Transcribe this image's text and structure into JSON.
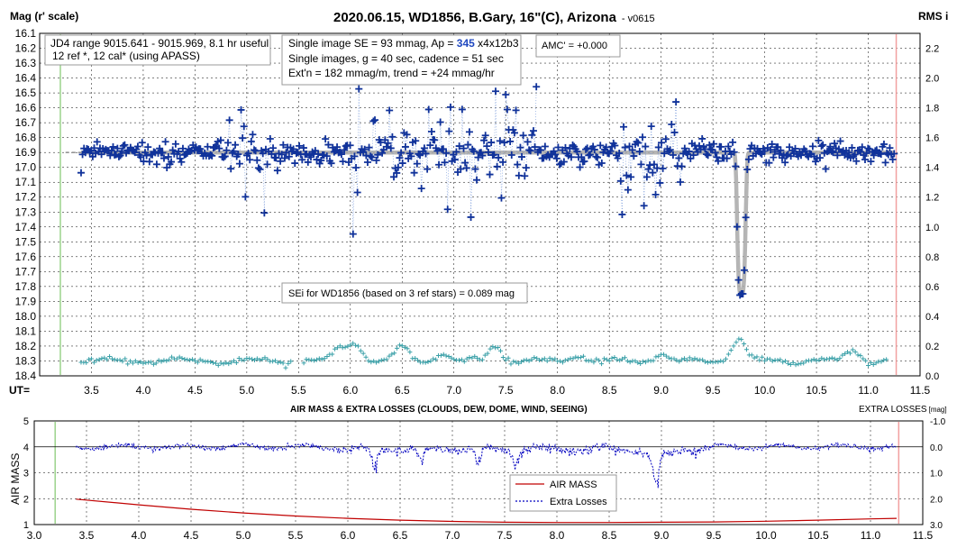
{
  "chart_data": [
    {
      "type": "scatter",
      "title": "2020.06.15, WD1856, B.Gary, 16\"(C), Arizona",
      "version": "- v0615",
      "ylabel_left": "Mag (r' scale)",
      "ylabel_right": "RMS i",
      "xlabel": "UT=",
      "xlim": [
        3.0,
        11.5
      ],
      "ylim_left": [
        16.1,
        18.4
      ],
      "ylim_right": [
        0.0,
        2.3
      ],
      "x_ticks": [
        "3.5",
        "4.0",
        "4.5",
        "5.0",
        "5.5",
        "6.0",
        "6.5",
        "7.0",
        "7.5",
        "8.0",
        "8.5",
        "9.0",
        "9.5",
        "10.0",
        "10.5",
        "11.0",
        "11.5"
      ],
      "y_ticks_left": [
        "16.1",
        "16.2",
        "16.3",
        "16.4",
        "16.5",
        "16.6",
        "16.7",
        "16.8",
        "16.9",
        "17.0",
        "17.1",
        "17.2",
        "17.3",
        "17.4",
        "17.5",
        "17.6",
        "17.7",
        "17.8",
        "17.9",
        "18.0",
        "18.1",
        "18.2",
        "18.3",
        "18.4"
      ],
      "y_ticks_right": [
        "2.2",
        "2.0",
        "1.8",
        "1.6",
        "1.4",
        "1.2",
        "1.0",
        "0.8",
        "0.6",
        "0.4",
        "0.2",
        "0.0"
      ],
      "grid": true,
      "vlines": [
        {
          "x": 3.2,
          "color": "#9bd38b"
        },
        {
          "x": 11.27,
          "color": "#f2a0a0"
        }
      ],
      "baseline_mag": 16.9,
      "transit": {
        "center": 9.775,
        "depth_mag": 17.85,
        "half_width": 0.045
      },
      "annotations": {
        "jd_line1": "JD4 range 9015.641 - 9015.969, 8.1 hr useful",
        "jd_line2": "12 ref *, 12 cal* (using APASS)",
        "se_pre": "Single image SE = 93 mmag, Ap = ",
        "se_ap": "345",
        "se_post": " x4x12b3",
        "single_images": "Single images, g = 40 sec, cadence = 51 sec",
        "extn": "Ext'n = 182 mmag/m, trend = +24 mmag/hr",
        "amc": "AMC' = +0.000",
        "sei": "SEi for WD1856 (based on 3 ref stars) = 0.089 mag"
      },
      "series": [
        {
          "name": "WD1856 r' mag",
          "color": "#10329a",
          "marker": "+",
          "n_points": 560,
          "x_range": [
            3.4,
            11.25
          ],
          "scatter_mag": 0.093
        },
        {
          "name": "RMS",
          "color": "#3aa0a8",
          "marker": "+",
          "baseline": 0.1
        }
      ]
    },
    {
      "type": "line",
      "title": "AIR MASS & EXTRA LOSSES (CLOUDS, DEW, DOME, WIND, SEEING)",
      "ylabel_left": "AIR MASS",
      "ylabel_right": "EXTRA LOSSES",
      "ylabel_right_unit": "[mag]",
      "xlim": [
        3.0,
        11.5
      ],
      "ylim_left": [
        1,
        5
      ],
      "ylim_right": [
        -1.0,
        3.0
      ],
      "x_ticks": [
        "3.0",
        "3.5",
        "4.0",
        "4.5",
        "5.0",
        "5.5",
        "6.0",
        "6.5",
        "7.0",
        "7.5",
        "8.0",
        "8.5",
        "9.0",
        "9.5",
        "10.0",
        "10.5",
        "11.0",
        "11.5"
      ],
      "y_ticks_left": [
        "5",
        "4",
        "3",
        "2",
        "1"
      ],
      "y_ticks_right": [
        "-1.0",
        "0.0",
        "1.0",
        "2.0",
        "3.0"
      ],
      "grid": true,
      "legend_position": "lower-center",
      "series": [
        {
          "name": "AIR MASS",
          "color": "#c00000",
          "x": [
            3.4,
            4.0,
            4.5,
            5.0,
            5.5,
            6.0,
            6.5,
            7.0,
            7.5,
            8.0,
            8.5,
            9.0,
            9.5,
            10.0,
            10.5,
            11.0,
            11.25
          ],
          "values": [
            1.98,
            1.76,
            1.59,
            1.45,
            1.33,
            1.24,
            1.17,
            1.12,
            1.09,
            1.08,
            1.08,
            1.09,
            1.1,
            1.13,
            1.17,
            1.22,
            1.24
          ]
        },
        {
          "name": "Extra Losses",
          "color": "#0000c0",
          "style": "dashed",
          "baseline": 0.0,
          "dips": [
            {
              "x": 6.25,
              "v": 0.9
            },
            {
              "x": 6.7,
              "v": 0.7
            },
            {
              "x": 7.25,
              "v": 0.75
            },
            {
              "x": 7.6,
              "v": 0.7
            },
            {
              "x": 8.95,
              "v": 1.3
            }
          ]
        }
      ]
    }
  ]
}
